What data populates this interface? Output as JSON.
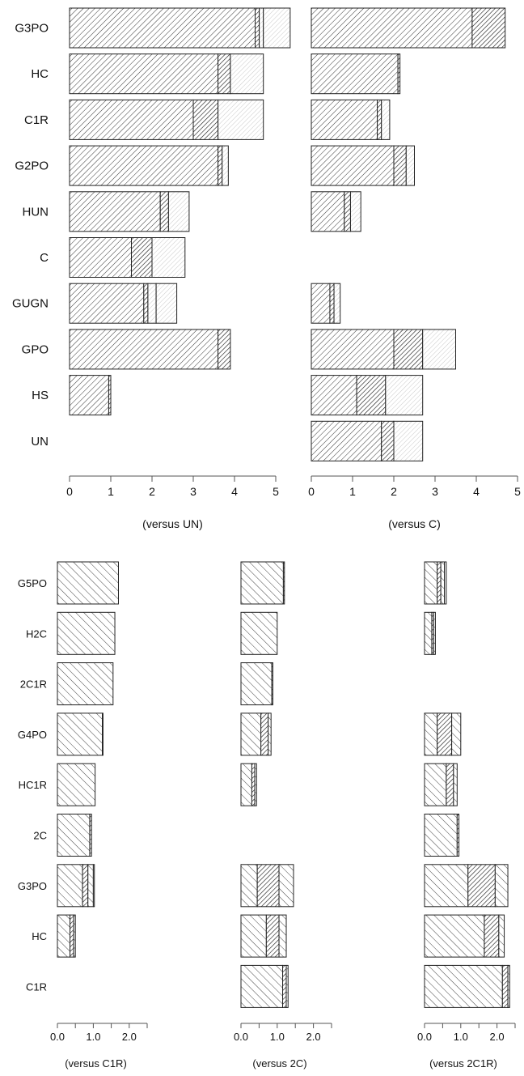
{
  "chart_data": [
    {
      "type": "bar",
      "orientation": "horizontal",
      "stacked": true,
      "categories": [
        "G3PO",
        "HC",
        "C1R",
        "G2PO",
        "HUN",
        "C",
        "GUGN",
        "GPO",
        "HS",
        "UN"
      ],
      "segments": [
        [
          4.5,
          0.1,
          0.1,
          0.65
        ],
        [
          3.6,
          0.3,
          0.8
        ],
        [
          3.0,
          0.6,
          1.1
        ],
        [
          3.6,
          0.1,
          0.15
        ],
        [
          2.2,
          0.2,
          0.5
        ],
        [
          1.5,
          0.5,
          0.8
        ],
        [
          1.8,
          0.1,
          0.2,
          0.5
        ],
        [
          3.6,
          0.3
        ],
        [
          0.95,
          0.05
        ],
        []
      ],
      "xlabel": "(versus UN)",
      "xlim": [
        0,
        5
      ],
      "xticks": [
        "0",
        "1",
        "2",
        "3",
        "4",
        "5"
      ],
      "grid": false
    },
    {
      "type": "bar",
      "orientation": "horizontal",
      "stacked": true,
      "categories": [
        "G3PO",
        "HC",
        "C1R",
        "G2PO",
        "HUN",
        "C",
        "GUGN",
        "GPO",
        "HS",
        "UN"
      ],
      "segments": [
        [
          3.9,
          0.8
        ],
        [
          2.1,
          0.05
        ],
        [
          1.6,
          0.1,
          0.2
        ],
        [
          2.0,
          0.3,
          0.2
        ],
        [
          0.8,
          0.15,
          0.25
        ],
        [],
        [
          0.45,
          0.1,
          0.15
        ],
        [
          2.0,
          0.7,
          0.8
        ],
        [
          1.1,
          0.7,
          0.9
        ],
        [
          1.7,
          0.3,
          0.7
        ]
      ],
      "xlabel": "(versus C)",
      "xlim": [
        0,
        5
      ],
      "xticks": [
        "0",
        "1",
        "2",
        "3",
        "4",
        "5"
      ],
      "grid": false
    },
    {
      "type": "bar",
      "orientation": "horizontal",
      "stacked": true,
      "categories": [
        "G5PO",
        "H2C",
        "2C1R",
        "G4PO",
        "HC1R",
        "2C",
        "G3PO",
        "HC",
        "C1R"
      ],
      "segments": [
        [
          1.7
        ],
        [
          1.6
        ],
        [
          1.55
        ],
        [
          1.25,
          0.02
        ],
        [
          1.05
        ],
        [
          0.9,
          0.05
        ],
        [
          0.7,
          0.15,
          0.15,
          0.03
        ],
        [
          0.35,
          0.1,
          0.05
        ],
        []
      ],
      "xlabel": "(versus C1R)",
      "xlim": [
        0,
        2.5
      ],
      "xticks": [
        "0.0",
        "1.0",
        "2.0"
      ],
      "grid": false
    },
    {
      "type": "bar",
      "orientation": "horizontal",
      "stacked": true,
      "categories": [
        "G5PO",
        "H2C",
        "2C1R",
        "G4PO",
        "HC1R",
        "2C",
        "G3PO",
        "HC",
        "C1R"
      ],
      "segments": [
        [
          1.17,
          0.03
        ],
        [
          1.0
        ],
        [
          0.85,
          0.03
        ],
        [
          0.55,
          0.2,
          0.08
        ],
        [
          0.3,
          0.08,
          0.05
        ],
        [],
        [
          0.45,
          0.6,
          0.4
        ],
        [
          0.7,
          0.35,
          0.2
        ],
        [
          1.15,
          0.1,
          0.05
        ]
      ],
      "xlabel": "(versus 2C)",
      "xlim": [
        0,
        2.5
      ],
      "xticks": [
        "0.0",
        "1.0",
        "2.0"
      ],
      "grid": false
    },
    {
      "type": "bar",
      "orientation": "horizontal",
      "stacked": true,
      "categories": [
        "G5PO",
        "H2C",
        "2C1R",
        "G4PO",
        "HC1R",
        "2C",
        "G3PO",
        "HC",
        "C1R"
      ],
      "segments": [
        [
          0.35,
          0.1,
          0.1,
          0.05
        ],
        [
          0.2,
          0.05,
          0.05
        ],
        [],
        [
          0.35,
          0.4,
          0.25
        ],
        [
          0.6,
          0.2,
          0.1
        ],
        [
          0.9,
          0.05
        ],
        [
          1.2,
          0.75,
          0.35
        ],
        [
          1.65,
          0.4,
          0.15
        ],
        [
          2.15,
          0.15,
          0.05
        ]
      ],
      "xlabel": "(versus 2C1R)",
      "xlim": [
        0,
        2.5
      ],
      "xticks": [
        "0.0",
        "1.0",
        "2.0"
      ],
      "grid": false
    }
  ]
}
